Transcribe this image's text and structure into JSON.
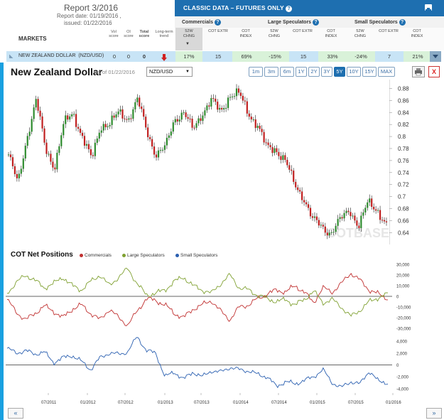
{
  "report": {
    "title": "Report 3/2016",
    "date": "Report date: 01/19/2016 ,",
    "issued": "issued: 01/22/2016"
  },
  "markets_header": {
    "label": "MARKETS",
    "vol": "Vol score",
    "oi": "OI score",
    "total": "Total score",
    "trend": "Long-term trend"
  },
  "banner": {
    "title": "CLASSIC DATA – FUTURES ONLY",
    "help": "?"
  },
  "groups": [
    {
      "name": "Commercials"
    },
    {
      "name": "Large Speculators"
    },
    {
      "name": "Small Speculators"
    }
  ],
  "subheaders": [
    "52W CHNG",
    "COT EXTR",
    "COT INDEX",
    "52W CHNG",
    "COT EXTR",
    "COT INDEX",
    "52W CHNG",
    "COT EXTR",
    "COT INDEX"
  ],
  "row": {
    "name": "NEW ZEALAND DOLLAR",
    "code": "(NZD/USD)",
    "vol": "0",
    "oi": "0",
    "total": "0",
    "values": [
      "17%",
      "15",
      "69%",
      "-15%",
      "15",
      "33%",
      "-24%",
      "7",
      "21%"
    ]
  },
  "chart": {
    "title": "New Zealand Dollar",
    "asof": "as of 01/22/2016",
    "pair": "NZD/USD",
    "ranges": [
      "1m",
      "3m",
      "6m",
      "1Y",
      "2Y",
      "3Y",
      "5Y",
      "10Y",
      "15Y",
      "MAX"
    ],
    "active_range": "5Y",
    "close": "X"
  },
  "cot": {
    "title": "COT Net Positions",
    "legend": [
      {
        "name": "Commercials",
        "color": "#c03030"
      },
      {
        "name": "Large Speculators",
        "color": "#7fa030"
      },
      {
        "name": "Small Speculators",
        "color": "#2a5fb0"
      }
    ]
  },
  "nav": {
    "prev": "«",
    "next": "»"
  },
  "chart_data": [
    {
      "type": "line",
      "title": "New Zealand Dollar",
      "ylim": [
        0.625,
        0.89
      ],
      "yticks": [
        "0.88",
        "0.86",
        "0.84",
        "0.82",
        "0.8",
        "0.78",
        "0.76",
        "0.74",
        "0.72",
        "0.7",
        "0.68",
        "0.66",
        "0.64"
      ],
      "series": [
        {
          "values": [
            0.77,
            0.72,
            0.8,
            0.86,
            0.78,
            0.75,
            0.82,
            0.84,
            0.8,
            0.76,
            0.82,
            0.82,
            0.84,
            0.83,
            0.86,
            0.81,
            0.77,
            0.78,
            0.83,
            0.84,
            0.81,
            0.84,
            0.86,
            0.84,
            0.87,
            0.87,
            0.84,
            0.82,
            0.78,
            0.78,
            0.76,
            0.72,
            0.7,
            0.66,
            0.65,
            0.64,
            0.66,
            0.68,
            0.65,
            0.69,
            0.68,
            0.65
          ]
        }
      ]
    },
    {
      "type": "line",
      "title": "COT Net Positions",
      "ylim": [
        -32000,
        32000
      ],
      "yticks": [
        "30,000",
        "20,000",
        "10,000",
        "0",
        "-10,000",
        "-20,000",
        "-30,000"
      ],
      "series": [
        {
          "name": "Commercials",
          "values": [
            -3000,
            -15000,
            -22000,
            -16000,
            -9000,
            -14000,
            -20000,
            -12000,
            -8000,
            -16000,
            -22000,
            -12000,
            -20000,
            -27000,
            -14000,
            -2000,
            -4000,
            -8000,
            -16000,
            -20000,
            -12000,
            -8000,
            -4000,
            -14000,
            -22000,
            -10000,
            -8000,
            -2000,
            2000,
            6000,
            4000,
            10000,
            4000,
            -6000,
            8000,
            4000,
            12000,
            22000,
            15000,
            6000,
            2000,
            -2000
          ]
        },
        {
          "name": "Large Speculators",
          "values": [
            3000,
            13000,
            20000,
            15000,
            8000,
            12000,
            18000,
            10000,
            6000,
            14000,
            20000,
            10000,
            18000,
            26000,
            12000,
            1000,
            3000,
            6000,
            14000,
            18000,
            10000,
            6000,
            3000,
            12000,
            20000,
            8000,
            6000,
            1000,
            -2000,
            -5000,
            -3000,
            -8000,
            -3000,
            5000,
            -6000,
            -3000,
            -10000,
            -19000,
            -13000,
            -5000,
            -1000,
            2000
          ]
        }
      ]
    },
    {
      "type": "line",
      "title": "Small Speculators",
      "ylim": [
        -4600,
        5200
      ],
      "yticks": [
        "4,000",
        "2,000",
        "0",
        "-2,000",
        "-4,000"
      ],
      "xticks": [
        "07/2011",
        "01/2012",
        "07/2012",
        "01/2013",
        "07/2013",
        "01/2014",
        "07/2014",
        "01/2015",
        "07/2015",
        "01/2016"
      ],
      "series": [
        {
          "name": "Small Speculators",
          "values": [
            2800,
            2000,
            2400,
            1800,
            2200,
            400,
            1200,
            1600,
            600,
            -800,
            1200,
            2000,
            1800,
            2200,
            4800,
            2400,
            2000,
            -2000,
            -1200,
            -2400,
            -1200,
            -2000,
            -1000,
            -1200,
            -400,
            -800,
            -1000,
            -1600,
            -2000,
            -3600,
            -2800,
            -3200,
            -2600,
            -2000,
            -800,
            -3000,
            -3800,
            -2800,
            -3200,
            -1000,
            -2800,
            -3000
          ]
        }
      ]
    }
  ]
}
